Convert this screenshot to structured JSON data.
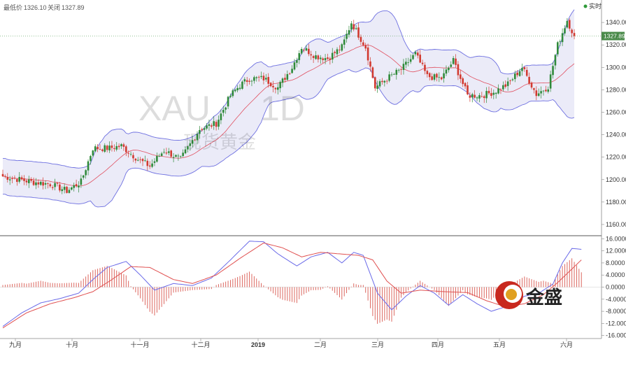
{
  "header": {
    "low_label": "最低价",
    "low_value": "1326.10",
    "close_label": "关闭",
    "close_value": "1327.89"
  },
  "watermark": {
    "symbol": "XAU",
    "period": "1D",
    "brand": "现货黄金"
  },
  "live_badge": "实时",
  "price_tag": "1327.89",
  "logo_text": "金盛",
  "colors": {
    "up": "#2f8a3a",
    "down": "#d23a30",
    "band": "#6d6fe0",
    "band_fill": "#e6e6f6",
    "mid": "#e05060",
    "macd_dif": "#6a6ae8",
    "macd_dea": "#e05050"
  },
  "chart_data": [
    {
      "type": "candlestick",
      "overlay": "bollinger_bands",
      "ylim": [
        1150,
        1360
      ],
      "y_ticks": [
        "1160.00",
        "1180.00",
        "1200.00",
        "1220.00",
        "1240.00",
        "1260.00",
        "1280.00",
        "1300.00",
        "1320.00",
        "1340.00"
      ],
      "x_ticks": [
        "九月",
        "十月",
        "十一月",
        "十二月",
        "2019",
        "二月",
        "三月",
        "四月",
        "五月",
        "六月"
      ],
      "last_price": 1327.89,
      "grid": false,
      "close_series": [
        {
          "day": 0,
          "close": 1203
        },
        {
          "day": 12,
          "close": 1198
        },
        {
          "day": 20,
          "close": 1196
        },
        {
          "day": 27,
          "close": 1190
        },
        {
          "day": 33,
          "close": 1198
        },
        {
          "day": 38,
          "close": 1228
        },
        {
          "day": 45,
          "close": 1228
        },
        {
          "day": 50,
          "close": 1230
        },
        {
          "day": 57,
          "close": 1218
        },
        {
          "day": 62,
          "close": 1212
        },
        {
          "day": 68,
          "close": 1226
        },
        {
          "day": 75,
          "close": 1218
        },
        {
          "day": 83,
          "close": 1245
        },
        {
          "day": 90,
          "close": 1250
        },
        {
          "day": 96,
          "close": 1275
        },
        {
          "day": 100,
          "close": 1284
        },
        {
          "day": 104,
          "close": 1290
        },
        {
          "day": 110,
          "close": 1290
        },
        {
          "day": 116,
          "close": 1282
        },
        {
          "day": 122,
          "close": 1300
        },
        {
          "day": 126,
          "close": 1318
        },
        {
          "day": 132,
          "close": 1310
        },
        {
          "day": 137,
          "close": 1308
        },
        {
          "day": 143,
          "close": 1318
        },
        {
          "day": 147,
          "close": 1340
        },
        {
          "day": 153,
          "close": 1318
        },
        {
          "day": 157,
          "close": 1282
        },
        {
          "day": 162,
          "close": 1290
        },
        {
          "day": 168,
          "close": 1298
        },
        {
          "day": 174,
          "close": 1312
        },
        {
          "day": 179,
          "close": 1292
        },
        {
          "day": 185,
          "close": 1290
        },
        {
          "day": 190,
          "close": 1306
        },
        {
          "day": 196,
          "close": 1275
        },
        {
          "day": 202,
          "close": 1275
        },
        {
          "day": 207,
          "close": 1278
        },
        {
          "day": 213,
          "close": 1285
        },
        {
          "day": 219,
          "close": 1300
        },
        {
          "day": 225,
          "close": 1276
        },
        {
          "day": 230,
          "close": 1283
        },
        {
          "day": 234,
          "close": 1320
        },
        {
          "day": 238,
          "close": 1342
        },
        {
          "day": 241,
          "close": 1328
        }
      ]
    },
    {
      "type": "macd",
      "ylim": [
        -17,
        17
      ],
      "y_ticks": [
        "16.0000",
        "12.0000",
        "8.0000",
        "4.0000",
        "0.0000",
        "-4.0000",
        "-8.0000",
        "-12.0000",
        "-16.0000"
      ],
      "dif_series": [
        {
          "day": 0,
          "value": -13
        },
        {
          "day": 8,
          "value": -8.5
        },
        {
          "day": 16,
          "value": -5.2
        },
        {
          "day": 24,
          "value": -3.8
        },
        {
          "day": 32,
          "value": -2
        },
        {
          "day": 38,
          "value": 2.5
        },
        {
          "day": 44,
          "value": 6.5
        },
        {
          "day": 52,
          "value": 8.5
        },
        {
          "day": 58,
          "value": 4
        },
        {
          "day": 64,
          "value": -1
        },
        {
          "day": 72,
          "value": 1.2
        },
        {
          "day": 80,
          "value": 0.5
        },
        {
          "day": 88,
          "value": 3
        },
        {
          "day": 96,
          "value": 9
        },
        {
          "day": 104,
          "value": 15.2
        },
        {
          "day": 110,
          "value": 15
        },
        {
          "day": 116,
          "value": 11
        },
        {
          "day": 124,
          "value": 7
        },
        {
          "day": 130,
          "value": 10
        },
        {
          "day": 137,
          "value": 11.5
        },
        {
          "day": 143,
          "value": 8
        },
        {
          "day": 148,
          "value": 11.5
        },
        {
          "day": 152,
          "value": 10.5
        },
        {
          "day": 158,
          "value": -2
        },
        {
          "day": 164,
          "value": -7.5
        },
        {
          "day": 170,
          "value": -3
        },
        {
          "day": 176,
          "value": 0.5
        },
        {
          "day": 182,
          "value": -2
        },
        {
          "day": 188,
          "value": -6
        },
        {
          "day": 194,
          "value": -2.5
        },
        {
          "day": 200,
          "value": -5.5
        },
        {
          "day": 206,
          "value": -8
        },
        {
          "day": 212,
          "value": -6.5
        },
        {
          "day": 220,
          "value": -3
        },
        {
          "day": 226,
          "value": -2
        },
        {
          "day": 232,
          "value": 1
        },
        {
          "day": 236,
          "value": 8
        },
        {
          "day": 240,
          "value": 12.8
        },
        {
          "day": 244,
          "value": 12.5
        }
      ],
      "dea_series": [
        {
          "day": 0,
          "value": -13.5
        },
        {
          "day": 10,
          "value": -8.5
        },
        {
          "day": 20,
          "value": -5.5
        },
        {
          "day": 30,
          "value": -3.5
        },
        {
          "day": 38,
          "value": -1.5
        },
        {
          "day": 46,
          "value": 2.5
        },
        {
          "day": 54,
          "value": 6.8
        },
        {
          "day": 62,
          "value": 6.5
        },
        {
          "day": 72,
          "value": 2.5
        },
        {
          "day": 80,
          "value": 1.2
        },
        {
          "day": 90,
          "value": 4
        },
        {
          "day": 100,
          "value": 9.5
        },
        {
          "day": 110,
          "value": 14.6
        },
        {
          "day": 118,
          "value": 13
        },
        {
          "day": 126,
          "value": 10
        },
        {
          "day": 134,
          "value": 11.5
        },
        {
          "day": 142,
          "value": 11
        },
        {
          "day": 150,
          "value": 10.5
        },
        {
          "day": 156,
          "value": 9
        },
        {
          "day": 162,
          "value": 2
        },
        {
          "day": 168,
          "value": -2
        },
        {
          "day": 176,
          "value": -1
        },
        {
          "day": 186,
          "value": -1.5
        },
        {
          "day": 196,
          "value": -1.8
        },
        {
          "day": 204,
          "value": -4.5
        },
        {
          "day": 212,
          "value": -6.5
        },
        {
          "day": 220,
          "value": -5.5
        },
        {
          "day": 228,
          "value": -2.5
        },
        {
          "day": 234,
          "value": 1.5
        },
        {
          "day": 240,
          "value": 6
        },
        {
          "day": 244,
          "value": 9
        }
      ]
    }
  ]
}
